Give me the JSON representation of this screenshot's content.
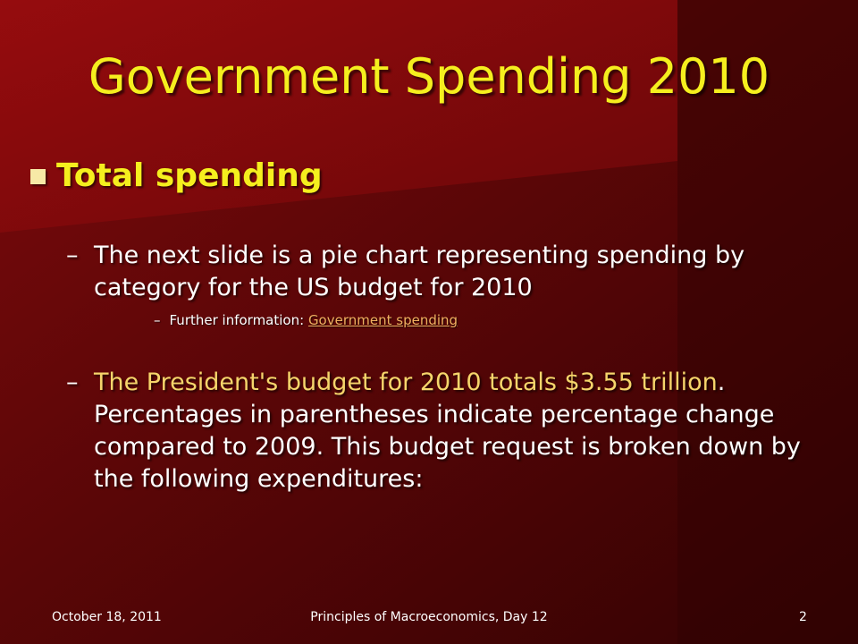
{
  "slide": {
    "title": "Government Spending 2010",
    "bullet": "Total spending",
    "sub1": "The next slide is a pie chart representing spending by category for the US budget for 2010",
    "subsub_label": "Further information: ",
    "subsub_link": "Government spending",
    "sub2_highlight": "The President's budget for 2010 totals $3.55 trillion",
    "sub2_rest": ". Percentages in parentheses indicate percentage change compared to 2009. This budget request is broken down by the following expenditures:",
    "dash": "–"
  },
  "footer": {
    "date": "October 18, 2011",
    "course": "Principles of Macroeconomics, Day 12",
    "page": "2"
  },
  "colors": {
    "title": "#f5ef1e",
    "highlight": "#f5d56b",
    "link": "#f0b060",
    "background": "#3d0204"
  }
}
